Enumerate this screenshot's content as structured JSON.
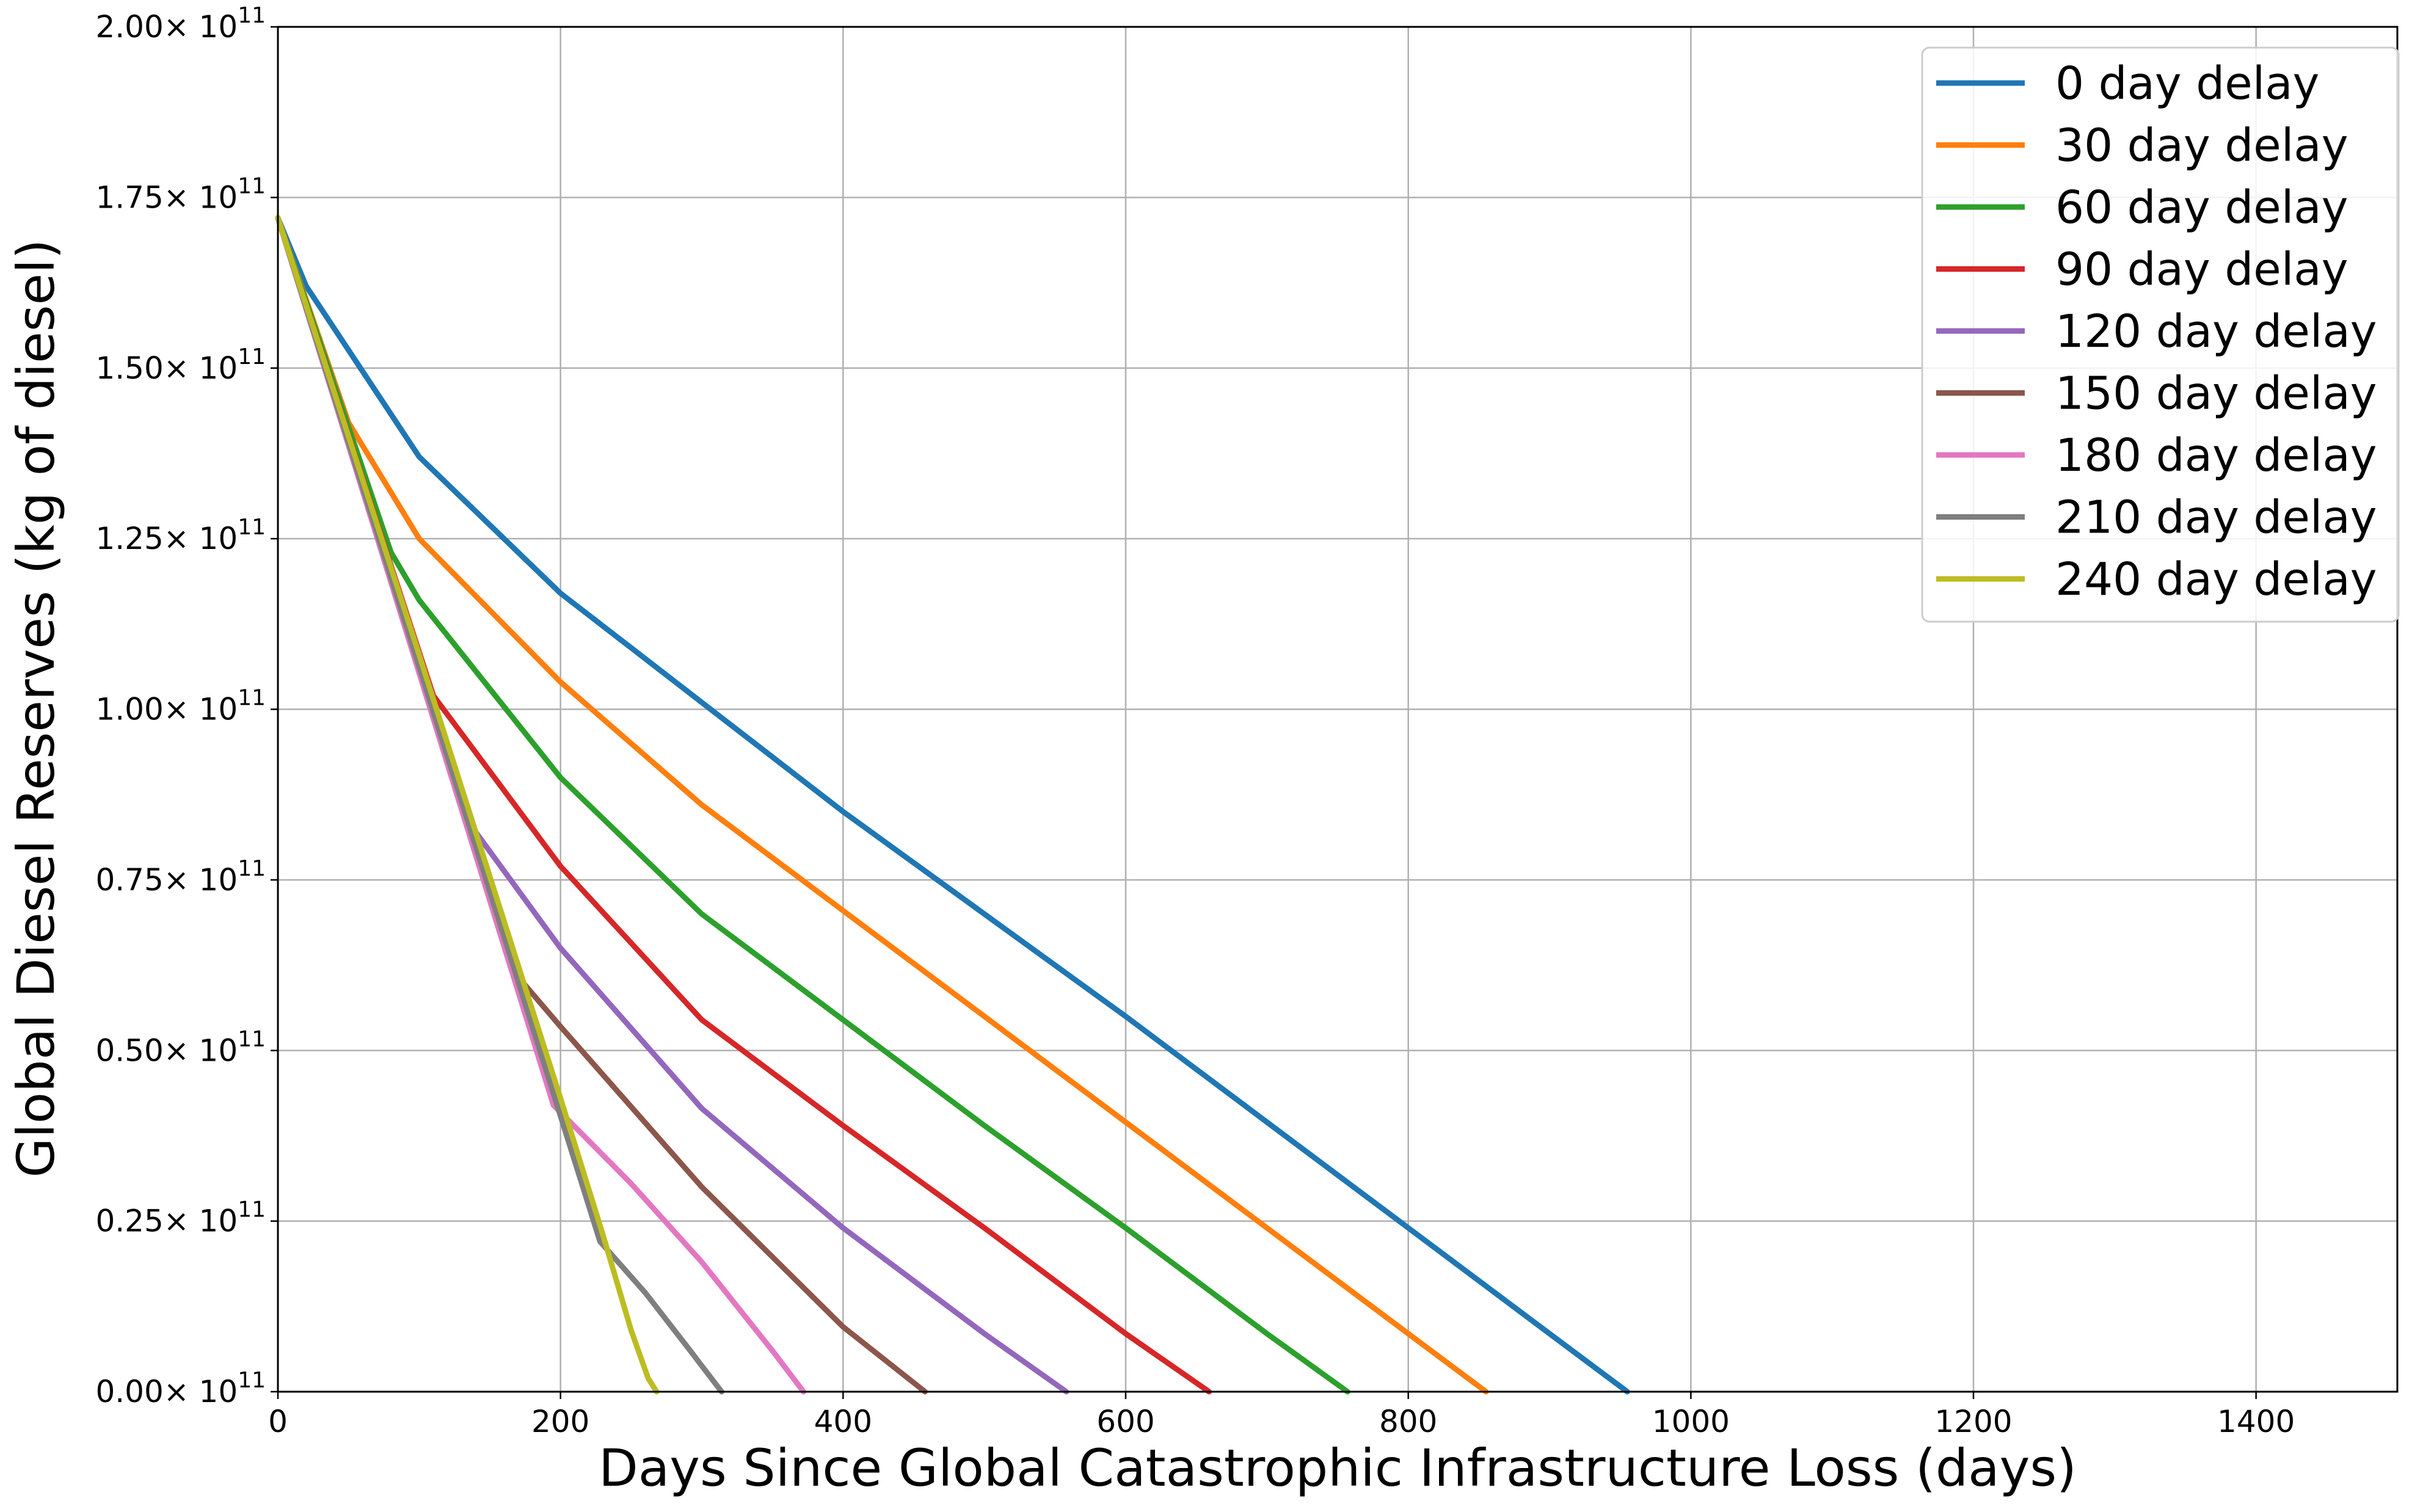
{
  "chart_data": {
    "type": "line",
    "title": "",
    "xlabel": "Days Since Global Catastrophic Infrastructure Loss (days)",
    "ylabel": "Global Diesel Reserves (kg of diesel)",
    "xlim": [
      0,
      1500
    ],
    "ylim": [
      0,
      200000000000
    ],
    "x_ticks": [
      0,
      200,
      400,
      600,
      800,
      1000,
      1200,
      1400
    ],
    "x_tick_labels": [
      "0",
      "200",
      "400",
      "600",
      "800",
      "1000",
      "1200",
      "1400"
    ],
    "y_ticks": [
      0,
      25000000000,
      50000000000,
      75000000000,
      100000000000,
      125000000000,
      150000000000,
      175000000000,
      200000000000
    ],
    "y_tick_mantissas": [
      "0.00",
      "0.25",
      "0.50",
      "0.75",
      "1.00",
      "1.25",
      "1.50",
      "1.75",
      "2.00"
    ],
    "y_tick_base": "× 10",
    "y_tick_exponent": "11",
    "grid": true,
    "legend_position": "top-right",
    "series": [
      {
        "name": "0 day delay",
        "color": "#1f77b4",
        "x": [
          0,
          20,
          100,
          200,
          300,
          400,
          500,
          600,
          700,
          800,
          900,
          955
        ],
        "y": [
          172000000000,
          162000000000,
          137000000000,
          117000000000,
          101000000000,
          85000000000,
          70000000000,
          55000000000,
          39500000000,
          24000000000,
          8500000000,
          0
        ]
      },
      {
        "name": "30 day delay",
        "color": "#ff7f0e",
        "x": [
          0,
          50,
          100,
          200,
          300,
          400,
          500,
          600,
          700,
          800,
          855
        ],
        "y": [
          172000000000,
          142000000000,
          125000000000,
          104000000000,
          86000000000,
          70500000000,
          55000000000,
          39500000000,
          24000000000,
          8500000000,
          0
        ]
      },
      {
        "name": "60 day delay",
        "color": "#2ca02c",
        "x": [
          0,
          80,
          100,
          200,
          300,
          400,
          500,
          600,
          700,
          757
        ],
        "y": [
          172000000000,
          123000000000,
          116000000000,
          90000000000,
          70000000000,
          54500000000,
          39000000000,
          24000000000,
          8500000000,
          0
        ]
      },
      {
        "name": "90 day delay",
        "color": "#d62728",
        "x": [
          0,
          110,
          200,
          300,
          400,
          500,
          600,
          659
        ],
        "y": [
          172000000000,
          102000000000,
          77000000000,
          54500000000,
          39000000000,
          24000000000,
          8500000000,
          0
        ]
      },
      {
        "name": "120 day delay",
        "color": "#9467bd",
        "x": [
          0,
          140,
          200,
          300,
          400,
          500,
          558
        ],
        "y": [
          172000000000,
          82000000000,
          65000000000,
          41500000000,
          24000000000,
          8500000000,
          0
        ]
      },
      {
        "name": "150 day delay",
        "color": "#8c564b",
        "x": [
          0,
          165,
          200,
          300,
          400,
          458
        ],
        "y": [
          172000000000,
          62000000000,
          53500000000,
          30000000000,
          9500000000,
          0
        ]
      },
      {
        "name": "180 day delay",
        "color": "#e377c2",
        "x": [
          0,
          195,
          250,
          300,
          350,
          372
        ],
        "y": [
          172000000000,
          42000000000,
          30500000000,
          19000000000,
          6000000000,
          0
        ]
      },
      {
        "name": "210 day delay",
        "color": "#7f7f7f",
        "x": [
          0,
          228,
          260,
          290,
          314
        ],
        "y": [
          172000000000,
          22000000000,
          14500000000,
          6500000000,
          0
        ]
      },
      {
        "name": "240 day delay",
        "color": "#bcbd22",
        "x": [
          0,
          100,
          160,
          200,
          230,
          250,
          262,
          268
        ],
        "y": [
          172000000000,
          108000000000,
          69000000000,
          43000000000,
          23000000000,
          9000000000,
          2000000000,
          0
        ]
      }
    ]
  }
}
